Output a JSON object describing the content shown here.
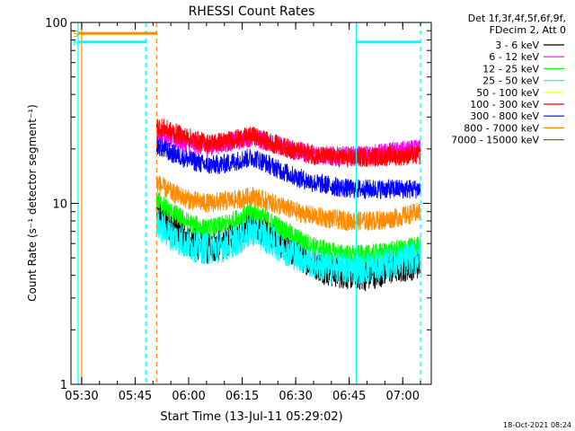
{
  "chart_data": {
    "type": "line",
    "title": "RHESSI Count Rates",
    "xlabel": "Start Time (13-Jul-11 05:29:02)",
    "ylabel": "Count Rate (s⁻¹ detector segment⁻¹)",
    "yscale": "log",
    "ylim": [
      1,
      100
    ],
    "xlim": [
      "05:27",
      "07:08"
    ],
    "x_ticks": [
      {
        "t": "05:30",
        "label": "05:30"
      },
      {
        "t": "05:45",
        "label": "05:45"
      },
      {
        "t": "06:00",
        "label": "06:00"
      },
      {
        "t": "06:15",
        "label": "06:15"
      },
      {
        "t": "06:30",
        "label": "06:30"
      },
      {
        "t": "06:45",
        "label": "06:45"
      },
      {
        "t": "07:00",
        "label": "07:00"
      }
    ],
    "y_ticks": [
      {
        "v": 1,
        "label": "1"
      },
      {
        "v": 10,
        "label": "10"
      },
      {
        "v": 100,
        "label": "100"
      }
    ],
    "legend": {
      "placement": "right",
      "header": [
        "Det 1f,3f,4f,5f,6f,9f,",
        "FDecim 2, Att 0"
      ],
      "entries": [
        {
          "label": "3 - 6 keV",
          "color": "#000000"
        },
        {
          "label": "6 - 12 keV",
          "color": "#ff00ff"
        },
        {
          "label": "12 - 25 keV",
          "color": "#00ff00"
        },
        {
          "label": "25 - 50 keV",
          "color": "#00ffff"
        },
        {
          "label": "50 - 100 keV",
          "color": "#ffff00"
        },
        {
          "label": "100 - 300 keV",
          "color": "#ff0000"
        },
        {
          "label": "300 - 800 keV",
          "color": "#0000ff"
        },
        {
          "label": "800 - 7000 keV",
          "color": "#ff8c00"
        },
        {
          "label": "7000 - 15000 keV",
          "color": "#8b6914"
        }
      ]
    },
    "series": [
      {
        "name": "3 - 6 keV",
        "color": "#000000",
        "start": "05:51",
        "end": "07:05",
        "points": [
          [
            "05:51",
            9
          ],
          [
            "05:55",
            7.5
          ],
          [
            "06:00",
            6.3
          ],
          [
            "06:05",
            5.6
          ],
          [
            "06:10",
            6
          ],
          [
            "06:15",
            7.2
          ],
          [
            "06:18",
            7.8
          ],
          [
            "06:20",
            7.3
          ],
          [
            "06:25",
            6.3
          ],
          [
            "06:30",
            5.3
          ],
          [
            "06:35",
            4.7
          ],
          [
            "06:40",
            4.2
          ],
          [
            "06:45",
            4.1
          ],
          [
            "06:50",
            4
          ],
          [
            "06:55",
            4.3
          ],
          [
            "07:00",
            4.5
          ],
          [
            "07:05",
            4.7
          ]
        ]
      },
      {
        "name": "6 - 12 keV",
        "color": "#ff00ff",
        "start": "05:51",
        "end": "07:05",
        "points": [
          [
            "05:51",
            25
          ],
          [
            "05:55",
            23
          ],
          [
            "06:00",
            21.5
          ],
          [
            "06:05",
            20.5
          ],
          [
            "06:10",
            21.5
          ],
          [
            "06:15",
            22.5
          ],
          [
            "06:18",
            23.5
          ],
          [
            "06:20",
            22.5
          ],
          [
            "06:25",
            21
          ],
          [
            "06:30",
            19.5
          ],
          [
            "06:35",
            18.8
          ],
          [
            "06:40",
            18.3
          ],
          [
            "06:45",
            18.3
          ],
          [
            "06:50",
            18.5
          ],
          [
            "06:55",
            19
          ],
          [
            "07:00",
            19.5
          ],
          [
            "07:05",
            20
          ]
        ]
      },
      {
        "name": "12 - 25 keV",
        "color": "#00ff00",
        "start": "05:51",
        "end": "07:05",
        "points": [
          [
            "05:51",
            10.5
          ],
          [
            "05:55",
            9
          ],
          [
            "06:00",
            7.8
          ],
          [
            "06:05",
            7.2
          ],
          [
            "06:10",
            7.6
          ],
          [
            "06:15",
            8.5
          ],
          [
            "06:18",
            9
          ],
          [
            "06:20",
            8.6
          ],
          [
            "06:25",
            7.5
          ],
          [
            "06:30",
            6.5
          ],
          [
            "06:35",
            5.8
          ],
          [
            "06:40",
            5.4
          ],
          [
            "06:45",
            5.2
          ],
          [
            "06:50",
            5.2
          ],
          [
            "06:55",
            5.4
          ],
          [
            "07:00",
            5.6
          ],
          [
            "07:05",
            5.9
          ]
        ]
      },
      {
        "name": "25 - 50 keV",
        "color": "#00ffff",
        "start": "05:51",
        "end": "07:05",
        "points": [
          [
            "05:51",
            7.8
          ],
          [
            "05:55",
            6.7
          ],
          [
            "06:00",
            5.9
          ],
          [
            "06:05",
            5.6
          ],
          [
            "06:10",
            5.8
          ],
          [
            "06:15",
            6.5
          ],
          [
            "06:18",
            7.1
          ],
          [
            "06:20",
            6.8
          ],
          [
            "06:25",
            5.9
          ],
          [
            "06:30",
            5.2
          ],
          [
            "06:35",
            4.7
          ],
          [
            "06:40",
            4.4
          ],
          [
            "06:45",
            4.4
          ],
          [
            "06:50",
            4.4
          ],
          [
            "06:55",
            4.6
          ],
          [
            "07:00",
            4.8
          ],
          [
            "07:05",
            5.1
          ]
        ]
      },
      {
        "name": "100 - 300 keV",
        "color": "#ff0000",
        "start": "05:51",
        "end": "07:05",
        "points": [
          [
            "05:51",
            27
          ],
          [
            "05:55",
            25
          ],
          [
            "06:00",
            23
          ],
          [
            "06:05",
            21.5
          ],
          [
            "06:10",
            22
          ],
          [
            "06:15",
            23
          ],
          [
            "06:18",
            23.5
          ],
          [
            "06:20",
            22.8
          ],
          [
            "06:25",
            21
          ],
          [
            "06:30",
            19.5
          ],
          [
            "06:35",
            18.5
          ],
          [
            "06:40",
            18
          ],
          [
            "06:45",
            17.8
          ],
          [
            "06:50",
            18
          ],
          [
            "06:55",
            18.2
          ],
          [
            "07:00",
            18.3
          ],
          [
            "07:05",
            18.5
          ]
        ]
      },
      {
        "name": "300 - 800 keV",
        "color": "#0000ff",
        "start": "05:51",
        "end": "07:05",
        "points": [
          [
            "05:51",
            21
          ],
          [
            "05:55",
            19
          ],
          [
            "06:00",
            17.5
          ],
          [
            "06:05",
            16.2
          ],
          [
            "06:10",
            16.5
          ],
          [
            "06:15",
            17.5
          ],
          [
            "06:18",
            18
          ],
          [
            "06:20",
            17.3
          ],
          [
            "06:25",
            15.5
          ],
          [
            "06:30",
            14
          ],
          [
            "06:35",
            13
          ],
          [
            "06:40",
            12.5
          ],
          [
            "06:45",
            12
          ],
          [
            "06:50",
            12
          ],
          [
            "06:55",
            12
          ],
          [
            "07:00",
            12
          ],
          [
            "07:05",
            12
          ]
        ]
      },
      {
        "name": "800 - 7000 keV",
        "color": "#ff8c00",
        "start": "05:51",
        "end": "07:05",
        "points": [
          [
            "05:51",
            13
          ],
          [
            "05:55",
            11.5
          ],
          [
            "06:00",
            10.5
          ],
          [
            "06:05",
            10
          ],
          [
            "06:10",
            10.3
          ],
          [
            "06:15",
            10.6
          ],
          [
            "06:18",
            11
          ],
          [
            "06:20",
            10.6
          ],
          [
            "06:25",
            9.8
          ],
          [
            "06:30",
            9
          ],
          [
            "06:35",
            8.5
          ],
          [
            "06:40",
            8.2
          ],
          [
            "06:45",
            8
          ],
          [
            "06:50",
            8
          ],
          [
            "06:55",
            8.1
          ],
          [
            "07:00",
            8.5
          ],
          [
            "07:05",
            9
          ]
        ]
      }
    ],
    "flag_bars": [
      {
        "label": "S",
        "color": "#ff8c00",
        "start": "05:29",
        "end": "05:51",
        "y": 87
      },
      {
        "label": "N",
        "color": "#00ffff",
        "start": "05:29",
        "end": "05:48",
        "y": 78
      },
      {
        "label": "",
        "color": "#00ffff",
        "start": "06:47",
        "end": "07:05",
        "y": 78
      }
    ],
    "vlines": [
      {
        "t": "05:30",
        "color": "#ff8c00",
        "dashed": false
      },
      {
        "t": "05:29",
        "color": "#00ffff",
        "dashed": false
      },
      {
        "t": "05:48",
        "color": "#00ffff",
        "dashed": true
      },
      {
        "t": "05:51",
        "color": "#ff8c00",
        "dashed": true
      },
      {
        "t": "06:47",
        "color": "#00ffff",
        "dashed": false
      },
      {
        "t": "07:05",
        "color": "#00ffff",
        "dashed": true
      }
    ],
    "footer_timestamp": "18-Oct-2021 08:24"
  }
}
